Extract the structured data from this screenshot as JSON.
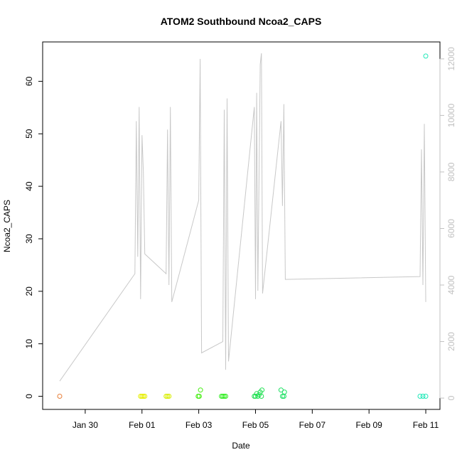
{
  "chart_data": {
    "type": "scatter",
    "title": "ATOM2 Southbound Ncoa2_CAPS",
    "xlabel": "Date",
    "ylabel": "Ncoa2_CAPS",
    "x_ticks": [
      "Jan 30",
      "Feb 01",
      "Feb 03",
      "Feb 05",
      "Feb 07",
      "Feb 09",
      "Feb 11"
    ],
    "y_ticks": [
      "0",
      "10",
      "20",
      "30",
      "40",
      "50",
      "60"
    ],
    "y2_ticks": [
      "0",
      "2000",
      "4000",
      "6000",
      "8000",
      "10000",
      "12000"
    ],
    "xlim": [
      "2024-01-28T12:00",
      "2024-02-11T12:00"
    ],
    "ylim": [
      -2.5,
      67.5
    ],
    "y2lim": [
      -400,
      12600
    ],
    "grid": false,
    "legend": "none",
    "colors": {
      "points_early": "#e8803a",
      "points_feb01": "#e6ee00",
      "points_feb03": "#44ee10",
      "points_feb05": "#1ee050",
      "points_feb11": "#20e8b8",
      "secondary_line": "#c8c8c8",
      "secondary_axis": "#c0c0c0"
    },
    "series": [
      {
        "type": "scatter",
        "axis": "left",
        "points": [
          {
            "x": "2024-01-29T02:24",
            "y": 0,
            "color": "#e8803a"
          },
          {
            "x": "2024-01-31T22:48",
            "y": 0,
            "color": "#e6ee00"
          },
          {
            "x": "2024-02-01T00:00",
            "y": 0,
            "color": "#e6ee00"
          },
          {
            "x": "2024-02-01T01:12",
            "y": 0,
            "color": "#e6ee00"
          },
          {
            "x": "2024-02-01T02:24",
            "y": 0,
            "color": "#e6ee00"
          },
          {
            "x": "2024-02-01T20:24",
            "y": 0,
            "color": "#d8ee00"
          },
          {
            "x": "2024-02-01T21:36",
            "y": 0,
            "color": "#d8ee00"
          },
          {
            "x": "2024-02-01T22:48",
            "y": 0,
            "color": "#d8ee00"
          },
          {
            "x": "2024-02-02T23:30",
            "y": 0,
            "color": "#44ee10"
          },
          {
            "x": "2024-02-03T00:30",
            "y": 0,
            "color": "#44ee10"
          },
          {
            "x": "2024-02-03T01:30",
            "y": 1.2,
            "color": "#44ee10"
          },
          {
            "x": "2024-02-03T19:12",
            "y": 0,
            "color": "#30ee20"
          },
          {
            "x": "2024-02-03T20:24",
            "y": 0,
            "color": "#30ee20"
          },
          {
            "x": "2024-02-03T21:36",
            "y": 0,
            "color": "#30ee20"
          },
          {
            "x": "2024-02-03T22:48",
            "y": 0,
            "color": "#30ee20"
          },
          {
            "x": "2024-02-04T23:00",
            "y": 0,
            "color": "#1ee050"
          },
          {
            "x": "2024-02-05T00:00",
            "y": 0,
            "color": "#1ee050"
          },
          {
            "x": "2024-02-05T01:00",
            "y": 0.5,
            "color": "#1ee050"
          },
          {
            "x": "2024-02-05T02:00",
            "y": 0,
            "color": "#1ee050"
          },
          {
            "x": "2024-02-05T03:00",
            "y": 0.3,
            "color": "#1ee050"
          },
          {
            "x": "2024-02-05T04:00",
            "y": 0.8,
            "color": "#1ee050"
          },
          {
            "x": "2024-02-05T05:00",
            "y": 0,
            "color": "#1ee050"
          },
          {
            "x": "2024-02-05T05:30",
            "y": 1.2,
            "color": "#1ee050"
          },
          {
            "x": "2024-02-05T21:36",
            "y": 1.2,
            "color": "#18e060"
          },
          {
            "x": "2024-02-05T22:48",
            "y": 0,
            "color": "#18e060"
          },
          {
            "x": "2024-02-06T00:00",
            "y": 0,
            "color": "#18e060"
          },
          {
            "x": "2024-02-06T00:30",
            "y": 0.8,
            "color": "#18e060"
          },
          {
            "x": "2024-02-10T19:12",
            "y": 0,
            "color": "#20e8b8"
          },
          {
            "x": "2024-02-10T21:36",
            "y": 0,
            "color": "#20e8b8"
          },
          {
            "x": "2024-02-11T00:00",
            "y": 0,
            "color": "#20e8b8"
          },
          {
            "x": "2024-02-11T00:00",
            "y": 64.8,
            "color": "#20e8b8"
          }
        ]
      },
      {
        "type": "line",
        "axis": "right",
        "color": "#c8c8c8",
        "points": [
          {
            "x": "2024-01-29T02:24",
            "y": 600
          },
          {
            "x": "2024-01-31T18:00",
            "y": 4400
          },
          {
            "x": "2024-01-31T19:12",
            "y": 9800
          },
          {
            "x": "2024-01-31T20:24",
            "y": 5000
          },
          {
            "x": "2024-01-31T21:36",
            "y": 10300
          },
          {
            "x": "2024-01-31T22:48",
            "y": 3500
          },
          {
            "x": "2024-02-01T00:00",
            "y": 9300
          },
          {
            "x": "2024-02-01T01:12",
            "y": 8000
          },
          {
            "x": "2024-02-01T02:24",
            "y": 5100
          },
          {
            "x": "2024-02-01T20:24",
            "y": 4400
          },
          {
            "x": "2024-02-01T21:36",
            "y": 9500
          },
          {
            "x": "2024-02-01T22:48",
            "y": 4000
          },
          {
            "x": "2024-02-02T00:00",
            "y": 10300
          },
          {
            "x": "2024-02-02T01:12",
            "y": 3400
          },
          {
            "x": "2024-02-03T00:00",
            "y": 7000
          },
          {
            "x": "2024-02-03T01:12",
            "y": 12000
          },
          {
            "x": "2024-02-03T02:24",
            "y": 1600
          },
          {
            "x": "2024-02-03T20:24",
            "y": 2000
          },
          {
            "x": "2024-02-03T21:36",
            "y": 10200
          },
          {
            "x": "2024-02-03T22:48",
            "y": 1000
          },
          {
            "x": "2024-02-04T00:00",
            "y": 10600
          },
          {
            "x": "2024-02-04T01:12",
            "y": 1300
          },
          {
            "x": "2024-02-04T23:00",
            "y": 10300
          },
          {
            "x": "2024-02-05T00:00",
            "y": 3500
          },
          {
            "x": "2024-02-05T01:00",
            "y": 10800
          },
          {
            "x": "2024-02-05T02:00",
            "y": 3800
          },
          {
            "x": "2024-02-05T04:00",
            "y": 11800
          },
          {
            "x": "2024-02-05T05:00",
            "y": 12200
          },
          {
            "x": "2024-02-05T06:00",
            "y": 3700
          },
          {
            "x": "2024-02-05T21:36",
            "y": 9800
          },
          {
            "x": "2024-02-05T22:48",
            "y": 6800
          },
          {
            "x": "2024-02-06T00:00",
            "y": 10400
          },
          {
            "x": "2024-02-06T01:12",
            "y": 4200
          },
          {
            "x": "2024-02-10T19:12",
            "y": 4300
          },
          {
            "x": "2024-02-10T20:24",
            "y": 8800
          },
          {
            "x": "2024-02-10T21:36",
            "y": 4000
          },
          {
            "x": "2024-02-10T22:48",
            "y": 9700
          },
          {
            "x": "2024-02-11T00:00",
            "y": 3400
          }
        ]
      }
    ]
  }
}
